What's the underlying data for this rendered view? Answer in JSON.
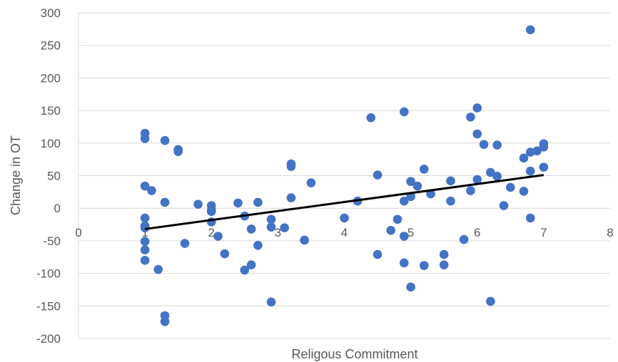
{
  "chart_data": {
    "type": "scatter",
    "title": "",
    "xlabel": "Religous Commitment",
    "ylabel": "Change in OT",
    "xlim": [
      0,
      8
    ],
    "ylim": [
      -200,
      300
    ],
    "xticks": [
      0,
      1,
      2,
      3,
      4,
      5,
      6,
      7,
      8
    ],
    "yticks": [
      -200,
      -150,
      -100,
      -50,
      0,
      50,
      100,
      150,
      200,
      250,
      300
    ],
    "grid": "horizontal",
    "legend": "none",
    "colors": {
      "points": "#4472C4",
      "trendline": "#000000",
      "grid": "#D9D9D9",
      "text": "#595959"
    },
    "points": [
      [
        1.0,
        115
      ],
      [
        1.0,
        107
      ],
      [
        1.0,
        34
      ],
      [
        1.0,
        -15
      ],
      [
        1.0,
        -27
      ],
      [
        1.0,
        -30
      ],
      [
        1.0,
        -51
      ],
      [
        1.0,
        -64
      ],
      [
        1.0,
        -80
      ],
      [
        1.1,
        27
      ],
      [
        1.2,
        -94
      ],
      [
        1.3,
        104
      ],
      [
        1.3,
        9
      ],
      [
        1.3,
        -165
      ],
      [
        1.3,
        -174
      ],
      [
        1.5,
        90
      ],
      [
        1.5,
        87
      ],
      [
        1.6,
        -54
      ],
      [
        1.8,
        6
      ],
      [
        2.0,
        4
      ],
      [
        2.0,
        -3
      ],
      [
        2.0,
        -5
      ],
      [
        2.0,
        -21
      ],
      [
        2.1,
        -43
      ],
      [
        2.2,
        -70
      ],
      [
        2.4,
        8
      ],
      [
        2.5,
        -12
      ],
      [
        2.5,
        -95
      ],
      [
        2.6,
        -32
      ],
      [
        2.6,
        -87
      ],
      [
        2.7,
        9
      ],
      [
        2.7,
        -57
      ],
      [
        2.9,
        -17
      ],
      [
        2.9,
        -29
      ],
      [
        2.9,
        -144
      ],
      [
        3.1,
        -30
      ],
      [
        3.2,
        68
      ],
      [
        3.2,
        64
      ],
      [
        3.2,
        16
      ],
      [
        3.4,
        -49
      ],
      [
        3.5,
        39
      ],
      [
        4.0,
        -15
      ],
      [
        4.2,
        11
      ],
      [
        4.4,
        139
      ],
      [
        4.5,
        51
      ],
      [
        4.5,
        -71
      ],
      [
        4.7,
        -34
      ],
      [
        4.8,
        -17
      ],
      [
        4.9,
        148
      ],
      [
        4.9,
        11
      ],
      [
        4.9,
        -43
      ],
      [
        4.9,
        -84
      ],
      [
        5.0,
        41
      ],
      [
        5.0,
        18
      ],
      [
        5.0,
        -121
      ],
      [
        5.1,
        34
      ],
      [
        5.2,
        60
      ],
      [
        5.2,
        -88
      ],
      [
        5.3,
        22
      ],
      [
        5.5,
        -71
      ],
      [
        5.5,
        -87
      ],
      [
        5.6,
        42
      ],
      [
        5.6,
        11
      ],
      [
        5.8,
        -48
      ],
      [
        5.9,
        140
      ],
      [
        5.9,
        27
      ],
      [
        6.0,
        154
      ],
      [
        6.0,
        114
      ],
      [
        6.0,
        44
      ],
      [
        6.1,
        98
      ],
      [
        6.2,
        55
      ],
      [
        6.2,
        -143
      ],
      [
        6.3,
        97
      ],
      [
        6.3,
        49
      ],
      [
        6.4,
        4
      ],
      [
        6.5,
        32
      ],
      [
        6.7,
        77
      ],
      [
        6.7,
        26
      ],
      [
        6.8,
        274
      ],
      [
        6.8,
        86
      ],
      [
        6.8,
        57
      ],
      [
        6.8,
        -15
      ],
      [
        6.9,
        88
      ],
      [
        7.0,
        99
      ],
      [
        7.0,
        94
      ],
      [
        7.0,
        63
      ]
    ],
    "trendline": {
      "x": [
        1,
        7
      ],
      "y": [
        -32,
        51
      ]
    }
  }
}
